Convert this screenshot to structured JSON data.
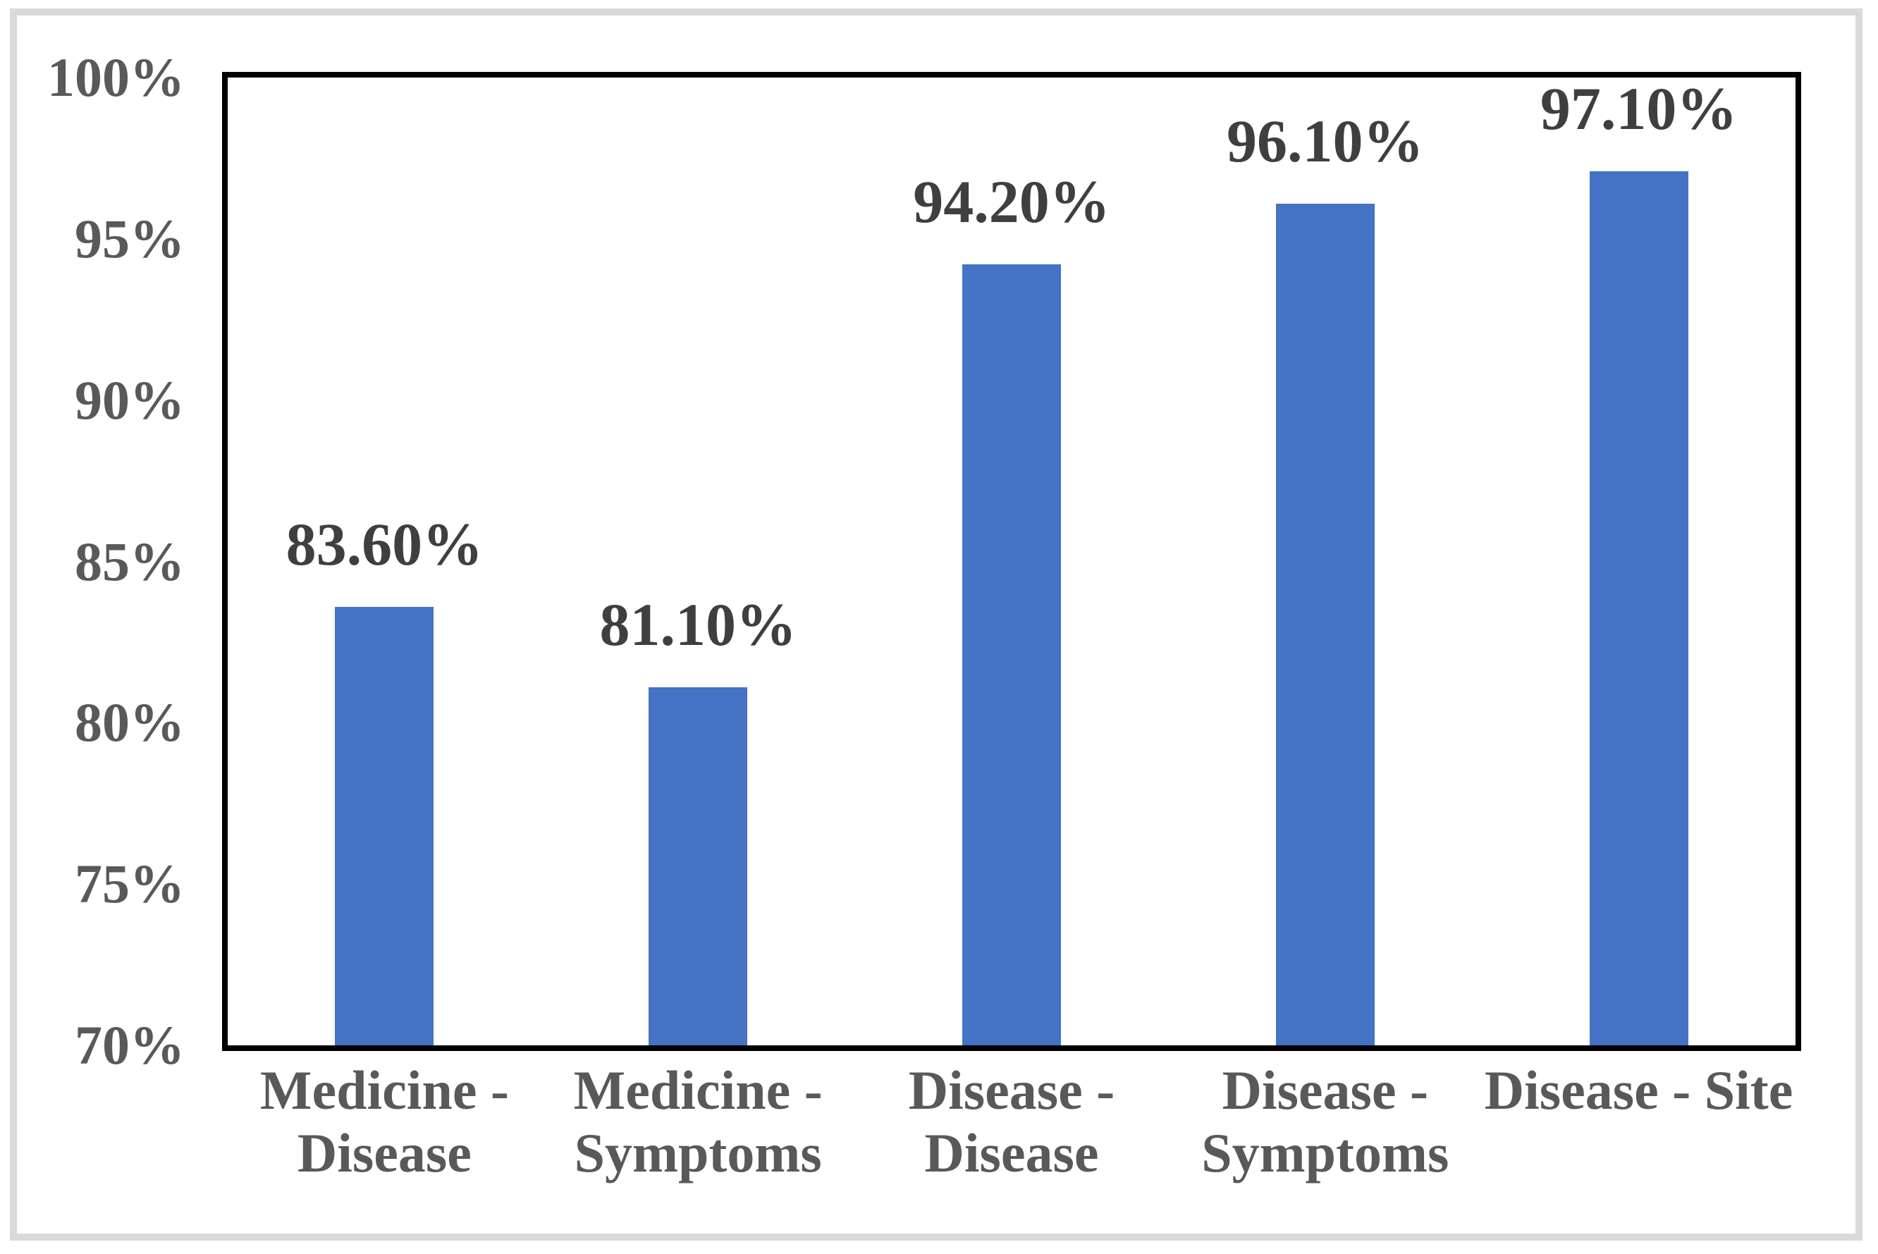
{
  "figure": {
    "background_color": "#ffffff",
    "frame_color": "#d9d9d9",
    "plot_border_color": "#000000"
  },
  "chart_data": {
    "type": "bar",
    "title": "",
    "xlabel": "",
    "ylabel": "",
    "categories": [
      "Medicine - Disease",
      "Medicine - Symptoms",
      "Disease - Disease",
      "Disease - Symptoms",
      "Disease - Site"
    ],
    "category_label_lines": [
      [
        "Medicine -",
        "Disease"
      ],
      [
        "Medicine -",
        "Symptoms"
      ],
      [
        "Disease -",
        "Disease"
      ],
      [
        "Disease -",
        "Symptoms"
      ],
      [
        "Disease - Site"
      ]
    ],
    "values": [
      83.6,
      81.1,
      94.2,
      96.1,
      97.1
    ],
    "data_labels": [
      "83.60%",
      "81.10%",
      "94.20%",
      "96.10%",
      "97.10%"
    ],
    "ylim": [
      70,
      100
    ],
    "ytick_step": 5,
    "ytick_labels_top_to_bottom": [
      "100%",
      "95%",
      "90%",
      "85%",
      "80%",
      "75%",
      "70%"
    ],
    "grid": "off",
    "legend": "none",
    "bar_color": "#4472C4",
    "axis_label_color": "#595959",
    "data_label_color": "#3F3F3F"
  }
}
